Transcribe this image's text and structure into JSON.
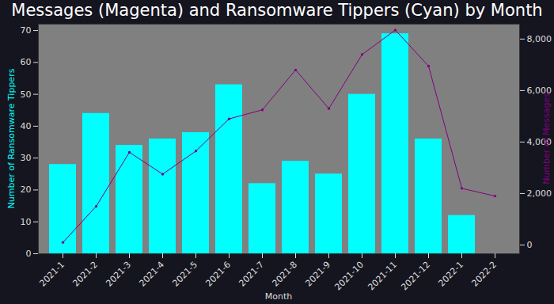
{
  "chart_data": {
    "type": "bar",
    "title": "Messages (Magenta) and Ransomware Tippers (Cyan) by Month",
    "x_label": "Month",
    "y_label": "Number of Ransomware Tippers",
    "y2_label": "Number of Messages",
    "categories": [
      "2021-1",
      "2021-2",
      "2021-3",
      "2021-4",
      "2021-5",
      "2021-6",
      "2021-7",
      "2021-8",
      "2021-9",
      "2021-10",
      "2021-11",
      "2021-12",
      "2022-1",
      "2022-2"
    ],
    "series": [
      {
        "type": "bar",
        "color": "#00ffff",
        "values": [
          28,
          44,
          34,
          36,
          38,
          53,
          22,
          29,
          25,
          50,
          69,
          36,
          12,
          null
        ]
      },
      {
        "type": "line",
        "axis": "y2",
        "color": "#800080",
        "marker": "dot",
        "values": [
          100,
          1500,
          3600,
          2750,
          3650,
          4900,
          5250,
          6800,
          5300,
          7400,
          8350,
          6950,
          2200,
          1900
        ]
      }
    ],
    "ylim": [
      0,
      72
    ],
    "yticks": [
      0,
      10,
      20,
      30,
      40,
      50,
      60,
      70
    ],
    "y2lim": [
      -340,
      8580
    ],
    "y2ticks": [
      0,
      2000,
      4000,
      6000,
      8000
    ]
  }
}
